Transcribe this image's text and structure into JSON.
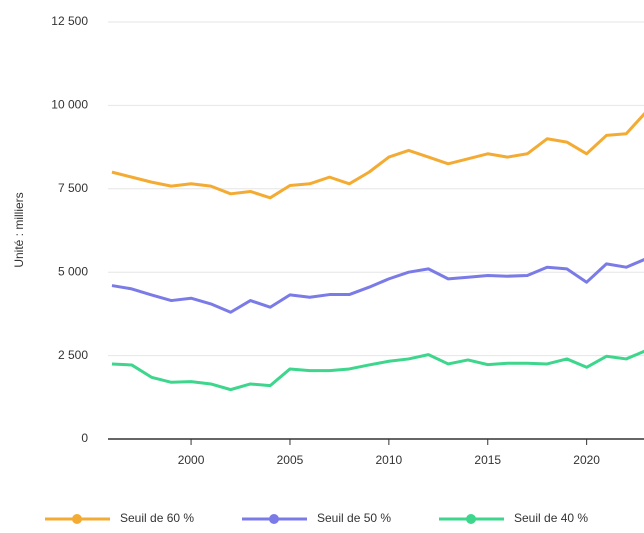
{
  "chart_data": {
    "type": "line",
    "y_label": "Unité : milliers",
    "x": [
      1996,
      1997,
      1998,
      1999,
      2000,
      2001,
      2002,
      2003,
      2004,
      2005,
      2006,
      2007,
      2008,
      2009,
      2010,
      2011,
      2012,
      2013,
      2014,
      2015,
      2016,
      2017,
      2018,
      2019,
      2020,
      2021,
      2022,
      2023
    ],
    "series": [
      {
        "name": "Seuil de 60 %",
        "color": "#f4ab33",
        "values": [
          8000,
          7850,
          7700,
          7580,
          7650,
          7580,
          7350,
          7420,
          7230,
          7600,
          7650,
          7850,
          7650,
          8000,
          8450,
          8650,
          8450,
          8250,
          8400,
          8550,
          8450,
          8550,
          9000,
          8900,
          8550,
          9100,
          9150,
          9800
        ]
      },
      {
        "name": "Seuil de 50 %",
        "color": "#7b7be8",
        "values": [
          4600,
          4500,
          4320,
          4150,
          4220,
          4050,
          3800,
          4150,
          3950,
          4320,
          4250,
          4330,
          4330,
          4550,
          4800,
          5000,
          5100,
          4800,
          4850,
          4900,
          4880,
          4900,
          5150,
          5100,
          4700,
          5250,
          5150,
          5400
        ]
      },
      {
        "name": "Seuil de 40 %",
        "color": "#3dd68c",
        "values": [
          2250,
          2220,
          1850,
          1700,
          1720,
          1650,
          1480,
          1650,
          1600,
          2100,
          2050,
          2050,
          2100,
          2220,
          2330,
          2400,
          2530,
          2250,
          2370,
          2230,
          2270,
          2270,
          2250,
          2400,
          2150,
          2480,
          2400,
          2650
        ]
      }
    ],
    "xlim": [
      1995.8,
      2022.9
    ],
    "xticks": [
      2000,
      2005,
      2010,
      2015,
      2020
    ],
    "ylim": [
      0,
      12500
    ],
    "yticks": [
      0,
      {
        "value": 2500,
        "label": "2 500"
      },
      {
        "value": 5000,
        "label": "5 000"
      },
      {
        "value": 7500,
        "label": "7 500"
      },
      {
        "value": 10000,
        "label": "10 000"
      },
      {
        "value": 12500,
        "label": "12 500"
      }
    ],
    "grid": true,
    "legend": "bottom"
  }
}
